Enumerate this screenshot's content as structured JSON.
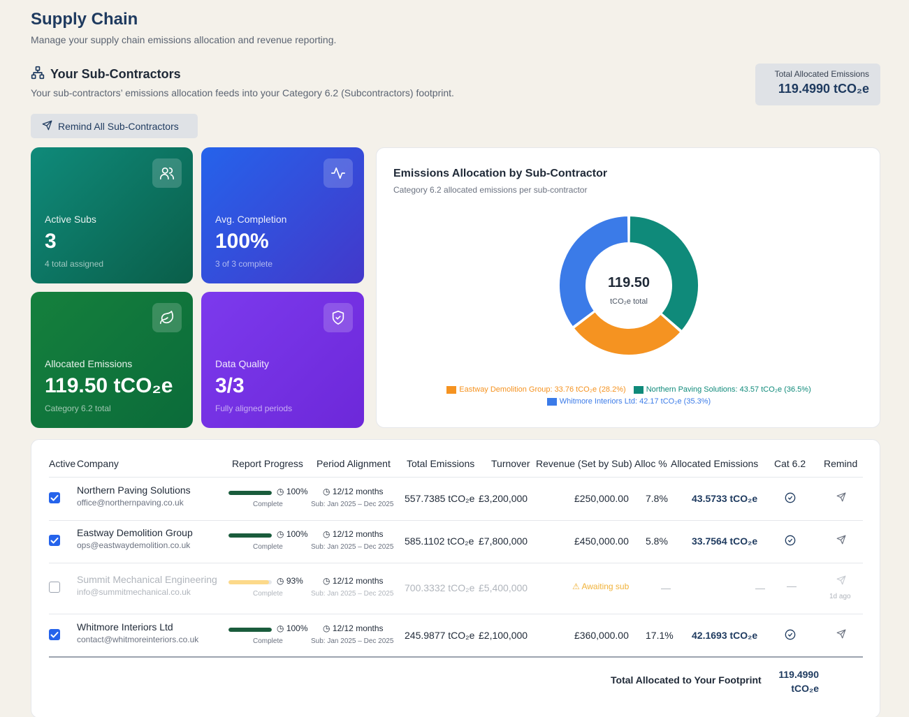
{
  "page": {
    "title": "Supply Chain",
    "subtitle": "Manage your supply chain emissions allocation and revenue reporting."
  },
  "section": {
    "title": "Your Sub-Contractors",
    "subtitle": "Your sub-contractors’ emissions allocation feeds into your Category 6.2 (Subcontractors) footprint.",
    "remind_all_label": "Remind All Sub-Contractors"
  },
  "total_box": {
    "label": "Total Allocated Emissions",
    "value": "119.4990 tCO₂e"
  },
  "cards": [
    {
      "label": "Active Subs",
      "value": "3",
      "note": "4 total assigned",
      "icon": "users-icon"
    },
    {
      "label": "Avg. Completion",
      "value": "100%",
      "note": "3 of 3 complete",
      "icon": "activity-icon"
    },
    {
      "label": "Allocated Emissions",
      "value": "119.50 tCO₂e",
      "note": "Category 6.2 total",
      "icon": "leaf-icon"
    },
    {
      "label": "Data Quality",
      "value": "3/3",
      "note": "Fully aligned periods",
      "icon": "shield-check-icon"
    }
  ],
  "chart_data": {
    "type": "pie",
    "title": "Emissions Allocation by Sub-Contractor",
    "subtitle": "Category 6.2 allocated emissions per sub-contractor",
    "center_value": "119.50",
    "center_label": "tCO₂e total",
    "slices": [
      {
        "name": "Northern Paving Solutions",
        "value": 43.57,
        "percent": 36.5,
        "color": "#0f8a7a",
        "legend": "Northern Paving Solutions: 43.57 tCO₂e (36.5%)"
      },
      {
        "name": "Eastway Demolition Group",
        "value": 33.76,
        "percent": 28.2,
        "color": "#f59321",
        "legend": "Eastway Demolition Group: 33.76 tCO₂e (28.2%)"
      },
      {
        "name": "Whitmore Interiors Ltd",
        "value": 42.17,
        "percent": 35.3,
        "color": "#3b7be8",
        "legend": "Whitmore Interiors Ltd: 42.17 tCO₂e (35.3%)"
      }
    ]
  },
  "table": {
    "headers": {
      "active": "Active",
      "company": "Company",
      "progress": "Report Progress",
      "period": "Period Alignment",
      "total": "Total Emissions",
      "turnover": "Turnover",
      "revenue": "Revenue (Set by Sub)",
      "alloc": "Alloc %",
      "allocated": "Allocated Emissions",
      "cat": "Cat 6.2",
      "remind": "Remind"
    },
    "rows": [
      {
        "active": true,
        "name": "Northern Paving Solutions",
        "email": "office@northernpaving.co.uk",
        "progress": 100,
        "progress_label": "100%",
        "progress_status": "Complete",
        "period": "12/12 months",
        "period_sub": "Sub: Jan 2025 – Dec 2025",
        "total": "557.7385 tCO₂e",
        "turnover": "£3,200,000",
        "revenue": "£250,000.00",
        "alloc": "7.8%",
        "allocated": "43.5733 tCO₂e",
        "remind_note": ""
      },
      {
        "active": true,
        "name": "Eastway Demolition Group",
        "email": "ops@eastwaydemolition.co.uk",
        "progress": 100,
        "progress_label": "100%",
        "progress_status": "Complete",
        "period": "12/12 months",
        "period_sub": "Sub: Jan 2025 – Dec 2025",
        "total": "585.1102 tCO₂e",
        "turnover": "£7,800,000",
        "revenue": "£450,000.00",
        "alloc": "5.8%",
        "allocated": "33.7564 tCO₂e",
        "remind_note": ""
      },
      {
        "active": false,
        "name": "Summit Mechanical Engineering",
        "email": "info@summitmechanical.co.uk",
        "progress": 93,
        "progress_label": "93%",
        "progress_status": "Complete",
        "period": "12/12 months",
        "period_sub": "Sub: Jan 2025 – Dec 2025",
        "total": "700.3332 tCO₂e",
        "turnover": "£5,400,000",
        "revenue": "Awaiting sub",
        "alloc": "—",
        "allocated": "—",
        "cat": "—",
        "remind_note": "1d ago"
      },
      {
        "active": true,
        "name": "Whitmore Interiors Ltd",
        "email": "contact@whitmoreinteriors.co.uk",
        "progress": 100,
        "progress_label": "100%",
        "progress_status": "Complete",
        "period": "12/12 months",
        "period_sub": "Sub: Jan 2025 – Dec 2025",
        "total": "245.9877 tCO₂e",
        "turnover": "£2,100,000",
        "revenue": "£360,000.00",
        "alloc": "17.1%",
        "allocated": "42.1693 tCO₂e",
        "remind_note": ""
      }
    ],
    "footer": {
      "label": "Total Allocated to Your Footprint",
      "value_line1": "119.4990",
      "value_line2": "tCO₂e"
    }
  }
}
